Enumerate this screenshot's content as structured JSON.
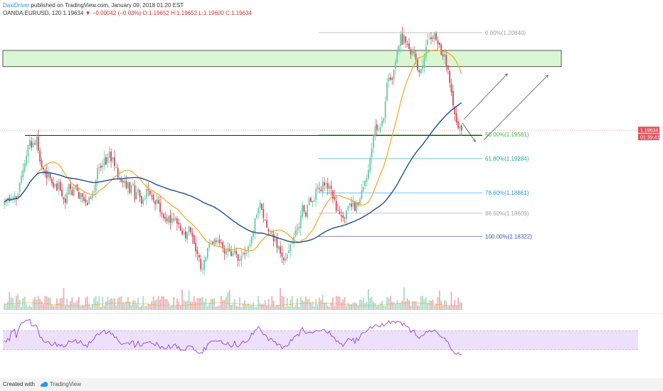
{
  "header": {
    "author": "DaxiDriver",
    "published_text": "published on TradingView.com, January 09, 2018 01:20 EST",
    "symbol": "OANDA:EURUSD, 120",
    "last": "1.19634",
    "change": "▼ −0.00042 (−0.03%)",
    "ohlc": "O:1.19652 H:1.19652 L:1.19600 C:1.19634"
  },
  "footer": {
    "created_with": "Created with",
    "brand": "TradingView"
  },
  "colors": {
    "up": "#69c9a4",
    "down": "#d1475a",
    "ma_fast": "#f5a623",
    "ma_slow": "#1e4d91",
    "zone_fill": "#d9f7d3",
    "rsi_band": "#ede0fa",
    "rsi_line": "#8a2be2"
  },
  "chart_data": {
    "type": "candlestick",
    "symbol": "OANDA:EURUSD",
    "timeframe": "120",
    "price_range": [
      1.178,
      1.2105
    ],
    "fib_levels": [
      {
        "label": "0.00%(1.20840)",
        "value": 1.2084,
        "color": "#9e9e9e"
      },
      {
        "label": "50.00%(1.19581)",
        "value": 1.19581,
        "color": "#4caf50"
      },
      {
        "label": "61.80%(1.19284)",
        "value": 1.19284,
        "color": "#26a69a"
      },
      {
        "label": "78.60%(1.18861)",
        "value": 1.18861,
        "color": "#2196f3"
      },
      {
        "label": "88.60%(1.18609)",
        "value": 1.18609,
        "color": "#9e9e9e"
      },
      {
        "label": "100.00%(1.18322)",
        "value": 1.18322,
        "color": "#3f51b5"
      }
    ],
    "supply_zone": [
      1.2042,
      1.2062
    ],
    "support_line": 1.1957,
    "last_price": {
      "label": "1.19634",
      "value": 1.19634
    },
    "countdown": "01:39:41",
    "rsi_band": [
      30,
      70
    ],
    "closes": [
      1.1875,
      1.1878,
      1.188,
      1.1876,
      1.1879,
      1.188,
      1.1883,
      1.1879,
      1.1885,
      1.1898,
      1.1907,
      1.1914,
      1.1922,
      1.1932,
      1.1945,
      1.1951,
      1.1942,
      1.1948,
      1.1946,
      1.1955,
      1.1938,
      1.1925,
      1.1918,
      1.1915,
      1.1912,
      1.1904,
      1.1911,
      1.1904,
      1.1898,
      1.1893,
      1.1897,
      1.1889,
      1.1899,
      1.1889,
      1.1882,
      1.1878,
      1.1874,
      1.1886,
      1.1897,
      1.1891,
      1.1883,
      1.1893,
      1.1895,
      1.1889,
      1.1879,
      1.1886,
      1.1881,
      1.1876,
      1.1875,
      1.1871,
      1.1881,
      1.1879,
      1.1886,
      1.1888,
      1.1902,
      1.1917,
      1.1918,
      1.1917,
      1.192,
      1.1929,
      1.1921,
      1.193,
      1.1937,
      1.1925,
      1.193,
      1.1919,
      1.1918,
      1.1905,
      1.1905,
      1.19,
      1.1899,
      1.1901,
      1.1892,
      1.1899,
      1.1886,
      1.1895,
      1.1897,
      1.1878,
      1.1887,
      1.1891,
      1.1881,
      1.1873,
      1.1878,
      1.1879,
      1.1891,
      1.1889,
      1.1884,
      1.1882,
      1.1877,
      1.1872,
      1.1878,
      1.1873,
      1.1862,
      1.186,
      1.1855,
      1.1854,
      1.1851,
      1.1857,
      1.1849,
      1.1855,
      1.1853,
      1.1855,
      1.1848,
      1.1847,
      1.184,
      1.1835,
      1.1838,
      1.183,
      1.1838,
      1.1845,
      1.1837,
      1.1832,
      1.1823,
      1.1814,
      1.1811,
      1.1806,
      1.1792,
      1.1792,
      1.1803,
      1.1806,
      1.1818,
      1.1825,
      1.1827,
      1.1823,
      1.1829,
      1.1825,
      1.1827,
      1.1824,
      1.1824,
      1.1818,
      1.1811,
      1.1814,
      1.1818,
      1.1814,
      1.1808,
      1.1812,
      1.1816,
      1.181,
      1.1802,
      1.1804,
      1.1808,
      1.1812,
      1.181,
      1.1812,
      1.182,
      1.1823,
      1.1832,
      1.1839,
      1.1855,
      1.1859,
      1.1867,
      1.1874,
      1.1865,
      1.1855,
      1.1853,
      1.1843,
      1.1838,
      1.1839,
      1.1837,
      1.1826,
      1.1829,
      1.1818,
      1.182,
      1.1811,
      1.1807,
      1.1803,
      1.1805,
      1.181,
      1.1815,
      1.1822,
      1.1824,
      1.1832,
      1.184,
      1.1841,
      1.1844,
      1.1858,
      1.1871,
      1.1863,
      1.1857,
      1.1871,
      1.1879,
      1.1875,
      1.1876,
      1.1877,
      1.1891,
      1.1893,
      1.1891,
      1.1888,
      1.19,
      1.1895,
      1.1898,
      1.1891,
      1.1894,
      1.1891,
      1.1879,
      1.1878,
      1.1864,
      1.1864,
      1.186,
      1.1857,
      1.1855,
      1.1855,
      1.1864,
      1.187,
      1.1873,
      1.1869,
      1.1876,
      1.1864,
      1.1874,
      1.1871,
      1.1878,
      1.1889,
      1.1893,
      1.1901,
      1.1904,
      1.1914,
      1.1929,
      1.1941,
      1.1957,
      1.1969,
      1.1964,
      1.1963,
      1.1967,
      1.1975,
      1.1978,
      1.1999,
      1.2022,
      1.2029,
      1.2026,
      1.2026,
      1.2038,
      1.2048,
      1.2061,
      1.2068,
      1.2082,
      1.2069,
      1.2081,
      1.2072,
      1.2069,
      1.2064,
      1.2057,
      1.2062,
      1.2059,
      1.2051,
      1.2038,
      1.2035,
      1.2039,
      1.2042,
      1.2054,
      1.2067,
      1.2075,
      1.2077,
      1.2076,
      1.2077,
      1.2084,
      1.2075,
      1.207,
      1.2069,
      1.2057,
      1.2055,
      1.2058,
      1.2043,
      1.2038,
      1.2022,
      1.201,
      1.1994,
      1.1983,
      1.1973,
      1.1966,
      1.1969,
      1.1963
    ]
  }
}
